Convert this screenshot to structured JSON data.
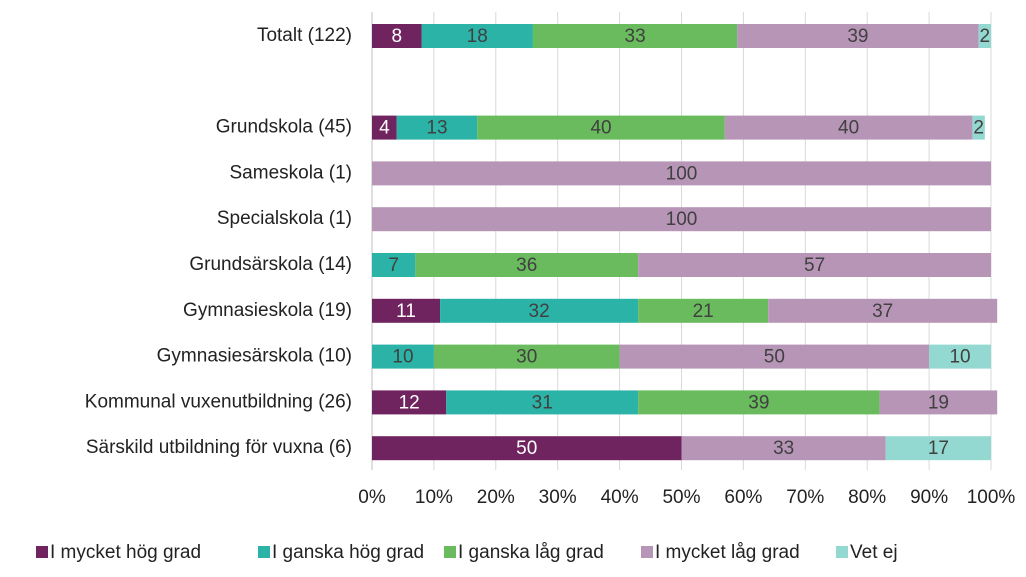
{
  "chart_data": {
    "type": "stacked-barh",
    "categories": [
      "Totalt (122)",
      null,
      "Grundskola (45)",
      "Sameskola (1)",
      "Specialskola (1)",
      "Grundsärskola (14)",
      "Gymnasieskola (19)",
      "Gymnasiesärskola (10)",
      "Kommunal vuxenutbildning (26)",
      "Särskild utbildning för vuxna (6)"
    ],
    "series": [
      {
        "name": "I mycket hög grad",
        "color": "#70245f",
        "values": [
          8,
          null,
          4,
          null,
          null,
          null,
          11,
          null,
          12,
          50
        ]
      },
      {
        "name": "I ganska hög grad",
        "color": "#2bb3a7",
        "values": [
          18,
          null,
          13,
          null,
          null,
          7,
          32,
          10,
          31,
          null
        ]
      },
      {
        "name": "I ganska låg grad",
        "color": "#69bb5d",
        "values": [
          33,
          null,
          40,
          null,
          null,
          36,
          21,
          30,
          39,
          null
        ]
      },
      {
        "name": "I mycket låg grad",
        "color": "#b795b7",
        "values": [
          39,
          null,
          40,
          100,
          100,
          57,
          37,
          50,
          19,
          33
        ]
      },
      {
        "name": "Vet ej",
        "color": "#94d9d1",
        "values": [
          2,
          null,
          2,
          null,
          null,
          null,
          null,
          10,
          null,
          17
        ]
      }
    ],
    "xlim": [
      0,
      100
    ],
    "xticks": [
      {
        "value": 0,
        "label": "0%"
      },
      {
        "value": 10,
        "label": "10%"
      },
      {
        "value": 20,
        "label": "20%"
      },
      {
        "value": 30,
        "label": "30%"
      },
      {
        "value": 40,
        "label": "40%"
      },
      {
        "value": 50,
        "label": "50%"
      },
      {
        "value": 60,
        "label": "60%"
      },
      {
        "value": 70,
        "label": "70%"
      },
      {
        "value": 80,
        "label": "80%"
      },
      {
        "value": 90,
        "label": "90%"
      },
      {
        "value": 100,
        "label": "100%"
      }
    ],
    "grid": true
  }
}
